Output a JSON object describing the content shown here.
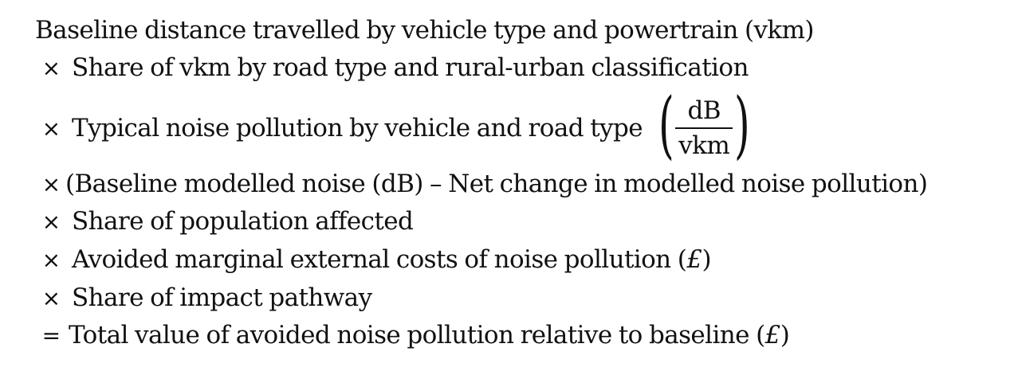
{
  "formula": {
    "line1": "Baseline distance travelled by vehicle type and powertrain (vkm)",
    "line2": {
      "op": "×",
      "text": "Share of vkm by road type and rural-urban classification"
    },
    "line3": {
      "op": "×",
      "text": "Typical noise pollution by vehicle and road type",
      "numerator": "dB",
      "denominator": "vkm"
    },
    "line4": {
      "op": "×",
      "text": "(Baseline modelled noise (dB) – Net change in modelled noise pollution)"
    },
    "line5": {
      "op": "×",
      "text": "Share of population affected"
    },
    "line6": {
      "op": "×",
      "text": "Avoided marginal external costs of noise pollution (",
      "currency": "£",
      "close": ")"
    },
    "line7": {
      "op": "×",
      "text": "Share of impact pathway"
    },
    "line8": {
      "op": "=",
      "text": "Total value of avoided noise pollution relative to baseline (",
      "currency": "£",
      "close": ")"
    }
  }
}
